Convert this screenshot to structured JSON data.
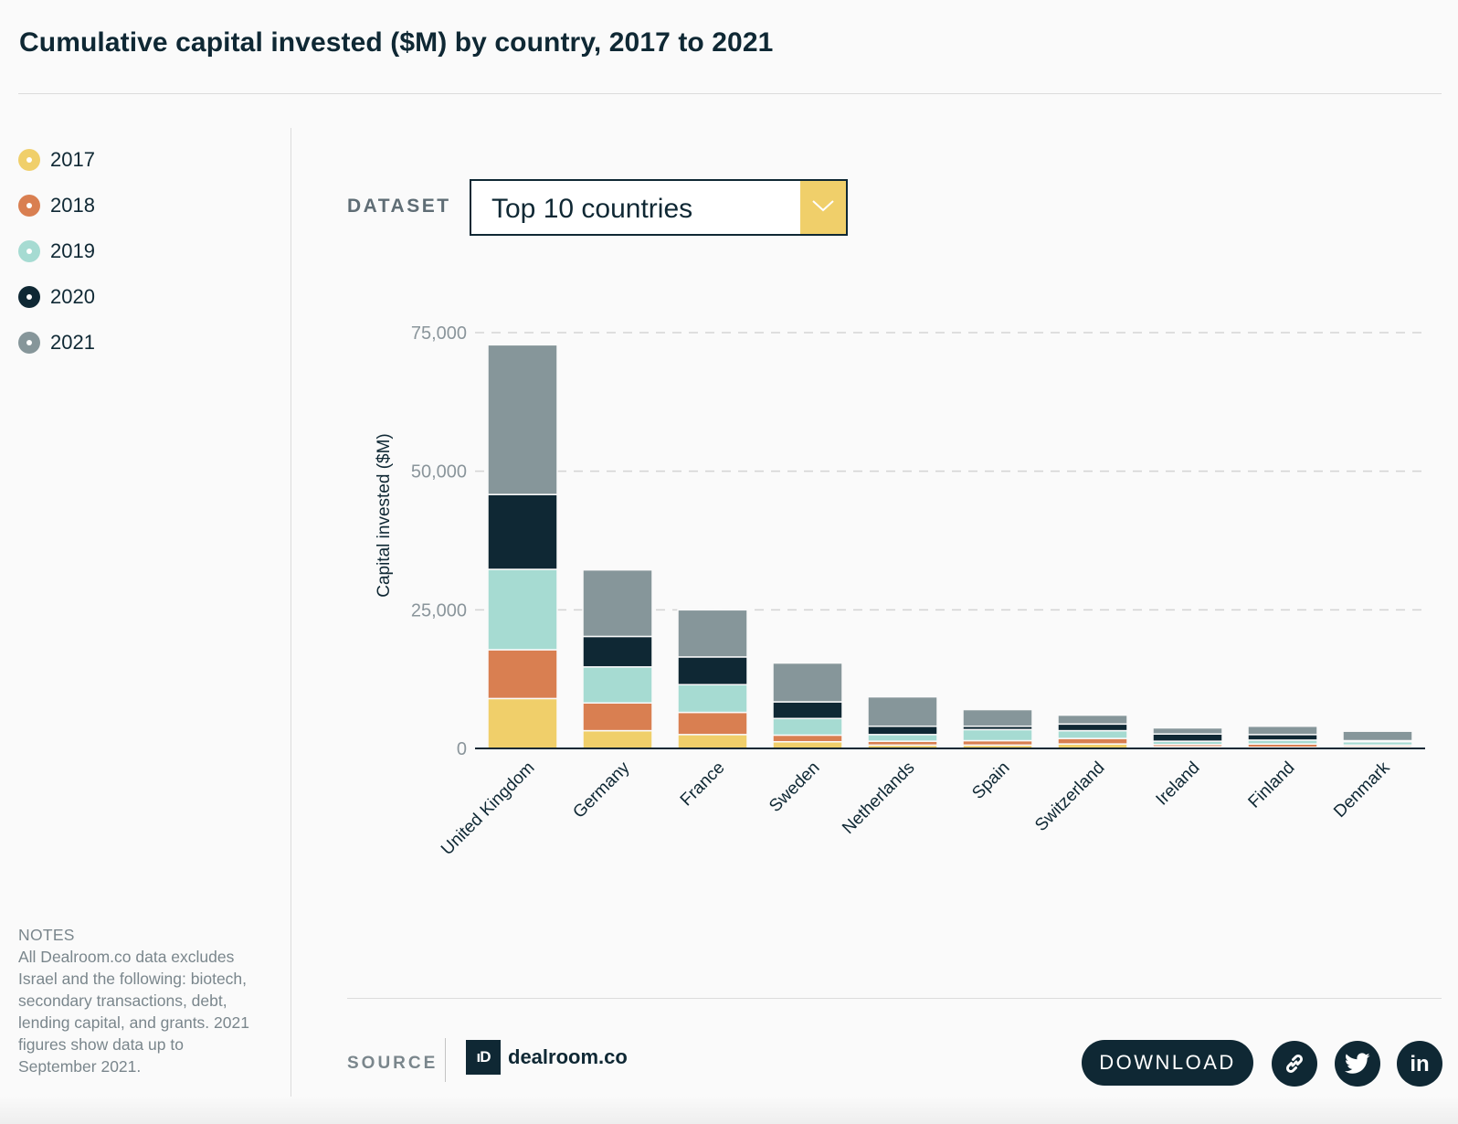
{
  "title": "Cumulative capital invested ($M) by country, 2017 to 2021",
  "legend": [
    {
      "label": "2017",
      "color": "#f0cf6a"
    },
    {
      "label": "2018",
      "color": "#d97f51"
    },
    {
      "label": "2019",
      "color": "#a6dbd2"
    },
    {
      "label": "2020",
      "color": "#0f2834"
    },
    {
      "label": "2021",
      "color": "#86969a"
    }
  ],
  "dataset": {
    "label": "DATASET",
    "value": "Top 10 countries"
  },
  "notes": {
    "title": "NOTES",
    "text": "All Dealroom.co data excludes Israel and the following: biotech, secondary transactions, debt, lending capital, and grants. 2021 figures show data up to September 2021."
  },
  "source": {
    "label": "SOURCE",
    "brand_mark": "ıD",
    "brand_name": "dealroom.co"
  },
  "actions": {
    "download": "DOWNLOAD",
    "link_icon": "link-icon",
    "twitter_icon": "twitter-icon",
    "linkedin_icon": "linkedin-icon",
    "linkedin_text": "in"
  },
  "chart_data": {
    "type": "bar",
    "stacked": true,
    "categories": [
      "United Kingdom",
      "Germany",
      "France",
      "Sweden",
      "Netherlands",
      "Spain",
      "Switzerland",
      "Ireland",
      "Finland",
      "Denmark"
    ],
    "series": [
      {
        "name": "2017",
        "color": "#f0cf6a",
        "values": [
          9000,
          3200,
          2500,
          1200,
          600,
          600,
          800,
          300,
          200,
          300
        ]
      },
      {
        "name": "2018",
        "color": "#d97f51",
        "values": [
          8800,
          5000,
          4000,
          1200,
          700,
          800,
          1000,
          400,
          600,
          300
        ]
      },
      {
        "name": "2019",
        "color": "#a6dbd2",
        "values": [
          14500,
          6500,
          5000,
          3000,
          1200,
          2000,
          1400,
          600,
          700,
          600
        ]
      },
      {
        "name": "2020",
        "color": "#0f2834",
        "values": [
          13500,
          5500,
          5000,
          3000,
          1500,
          600,
          1200,
          1300,
          1000,
          200
        ]
      },
      {
        "name": "2021",
        "color": "#86969a",
        "values": [
          27000,
          12000,
          8500,
          7000,
          5300,
          3000,
          1600,
          1100,
          1500,
          1700
        ]
      }
    ],
    "ylabel": "Capital invested ($M)",
    "xlabel": "",
    "ylim": [
      0,
      75000
    ],
    "yticks": [
      0,
      25000,
      50000,
      75000
    ],
    "ytick_labels": [
      "0",
      "25,000",
      "50,000",
      "75,000"
    ],
    "grid": true,
    "legend_position": "left"
  }
}
